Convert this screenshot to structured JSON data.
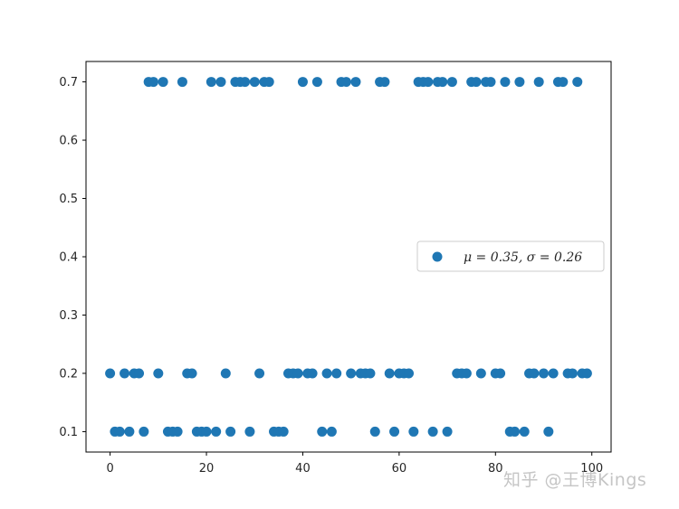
{
  "chart_data": {
    "type": "scatter",
    "title": "",
    "xlabel": "",
    "ylabel": "",
    "xlim": [
      -5,
      104
    ],
    "ylim": [
      0.065,
      0.735
    ],
    "xticks": [
      0,
      20,
      40,
      60,
      80,
      100
    ],
    "yticks": [
      0.1,
      0.2,
      0.3,
      0.4,
      0.5,
      0.6,
      0.7
    ],
    "grid": false,
    "legend_position": "center-right",
    "series": [
      {
        "name": "μ = 0.35,  σ = 0.26",
        "color": "#1f77b4",
        "x": [
          0,
          1,
          2,
          3,
          4,
          5,
          6,
          7,
          8,
          9,
          10,
          11,
          12,
          13,
          14,
          15,
          16,
          17,
          18,
          19,
          20,
          21,
          22,
          23,
          24,
          25,
          26,
          27,
          28,
          29,
          30,
          31,
          32,
          33,
          34,
          35,
          36,
          37,
          38,
          39,
          40,
          41,
          42,
          43,
          44,
          45,
          46,
          47,
          48,
          49,
          50,
          51,
          52,
          53,
          54,
          55,
          56,
          57,
          58,
          59,
          60,
          61,
          62,
          63,
          64,
          65,
          66,
          67,
          68,
          69,
          70,
          71,
          72,
          73,
          74,
          75,
          76,
          77,
          78,
          79,
          80,
          81,
          82,
          83,
          84,
          85,
          86,
          87,
          88,
          89,
          90,
          91,
          92,
          93,
          94,
          95,
          96,
          97,
          98,
          99
        ],
        "y": [
          0.2,
          0.1,
          0.1,
          0.2,
          0.1,
          0.2,
          0.2,
          0.1,
          0.7,
          0.7,
          0.2,
          0.7,
          0.1,
          0.1,
          0.1,
          0.7,
          0.2,
          0.2,
          0.1,
          0.1,
          0.1,
          0.7,
          0.1,
          0.7,
          0.2,
          0.1,
          0.7,
          0.7,
          0.7,
          0.1,
          0.7,
          0.2,
          0.7,
          0.7,
          0.1,
          0.1,
          0.1,
          0.2,
          0.2,
          0.2,
          0.7,
          0.2,
          0.2,
          0.7,
          0.1,
          0.2,
          0.1,
          0.2,
          0.7,
          0.7,
          0.2,
          0.7,
          0.2,
          0.2,
          0.2,
          0.1,
          0.7,
          0.7,
          0.2,
          0.1,
          0.2,
          0.2,
          0.2,
          0.1,
          0.7,
          0.7,
          0.7,
          0.1,
          0.7,
          0.7,
          0.1,
          0.7,
          0.2,
          0.2,
          0.2,
          0.7,
          0.7,
          0.2,
          0.7,
          0.7,
          0.2,
          0.2,
          0.7,
          0.1,
          0.1,
          0.7,
          0.1,
          0.2,
          0.2,
          0.7,
          0.2,
          0.1,
          0.2,
          0.7,
          0.7,
          0.2,
          0.2,
          0.7,
          0.2,
          0.2
        ]
      }
    ]
  },
  "legend": {
    "label": "μ = 0.35,  σ = 0.26"
  },
  "watermark": {
    "text": "知乎 @王博Kings"
  }
}
